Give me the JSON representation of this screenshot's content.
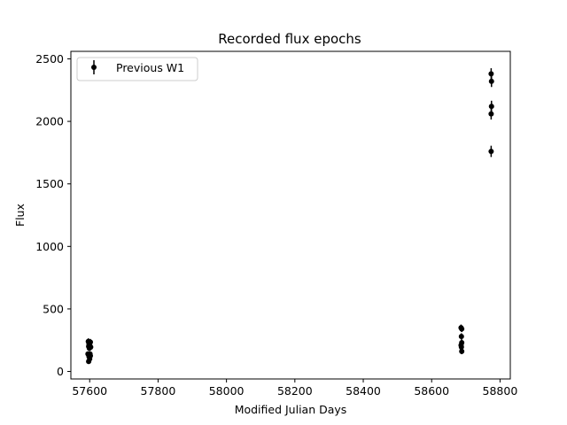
{
  "chart_data": {
    "type": "scatter",
    "title": "Recorded flux epochs",
    "xlabel": "Modified Julian Days",
    "ylabel": "Flux",
    "xlim": [
      57545,
      58830
    ],
    "ylim": [
      -60,
      2560
    ],
    "xticks": [
      57600,
      57800,
      58000,
      58200,
      58400,
      58600,
      58800
    ],
    "yticks": [
      0,
      500,
      1000,
      1500,
      2000,
      2500
    ],
    "grid": false,
    "legend_position": "top-left",
    "series": [
      {
        "name": "Previous W1",
        "color": "#000000",
        "marker": "circle",
        "points": [
          {
            "x": 57596,
            "y": 240,
            "err": 25
          },
          {
            "x": 57598,
            "y": 220,
            "err": 25
          },
          {
            "x": 57597,
            "y": 200,
            "err": 25
          },
          {
            "x": 57599,
            "y": 185,
            "err": 22
          },
          {
            "x": 57600,
            "y": 210,
            "err": 25
          },
          {
            "x": 57601,
            "y": 230,
            "err": 25
          },
          {
            "x": 57602,
            "y": 235,
            "err": 25
          },
          {
            "x": 57603,
            "y": 195,
            "err": 22
          },
          {
            "x": 57595,
            "y": 140,
            "err": 20
          },
          {
            "x": 57598,
            "y": 120,
            "err": 20
          },
          {
            "x": 57600,
            "y": 100,
            "err": 20
          },
          {
            "x": 57602,
            "y": 125,
            "err": 20
          },
          {
            "x": 57601,
            "y": 140,
            "err": 20
          },
          {
            "x": 57597,
            "y": 80,
            "err": 20
          },
          {
            "x": 58686,
            "y": 350,
            "err": 25
          },
          {
            "x": 58688,
            "y": 340,
            "err": 25
          },
          {
            "x": 58687,
            "y": 280,
            "err": 25
          },
          {
            "x": 58688,
            "y": 230,
            "err": 25
          },
          {
            "x": 58686,
            "y": 210,
            "err": 22
          },
          {
            "x": 58687,
            "y": 195,
            "err": 22
          },
          {
            "x": 58688,
            "y": 160,
            "err": 22
          },
          {
            "x": 58774,
            "y": 2380,
            "err": 45
          },
          {
            "x": 58775,
            "y": 2320,
            "err": 45
          },
          {
            "x": 58775,
            "y": 2120,
            "err": 45
          },
          {
            "x": 58774,
            "y": 2060,
            "err": 45
          },
          {
            "x": 58774,
            "y": 1760,
            "err": 45
          }
        ]
      }
    ]
  }
}
